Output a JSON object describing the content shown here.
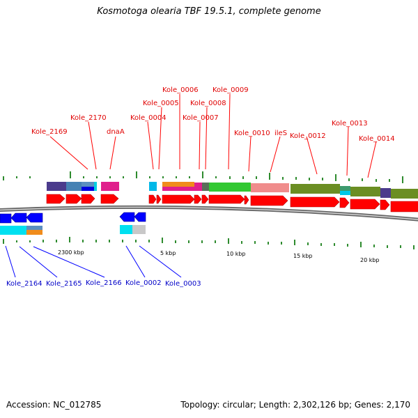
{
  "title": "Kosmotoga olearia TBF 19.5.1, complete genome",
  "accession": "Accession: NC_012785",
  "summary": "Topology: circular; Length: 2,302,126 bp; Genes: 2,170",
  "colors": {
    "forward_gene": "#ff0000",
    "reverse_gene": "#0000ff",
    "forward_label": "#e00000",
    "reverse_label": "#0000c8",
    "backbone": "#888888",
    "tick": "#2e8b2e"
  },
  "scale_labels": [
    "2300 kbp",
    "5 kbp",
    "10 kbp",
    "15 kbp",
    "20 kbp"
  ],
  "forward_gene_labels": [
    "Kole_2169",
    "Kole_2170",
    "dnaA",
    "Kole_0004",
    "Kole_0005",
    "Kole_0006",
    "Kole_0007",
    "Kole_0008",
    "Kole_0009",
    "Kole_0010",
    "ileS",
    "Kole_0012",
    "Kole_0013",
    "Kole_0014"
  ],
  "reverse_gene_labels": [
    "Kole_2164",
    "Kole_2165",
    "Kole_2166",
    "Kole_0002",
    "Kole_0003"
  ]
}
